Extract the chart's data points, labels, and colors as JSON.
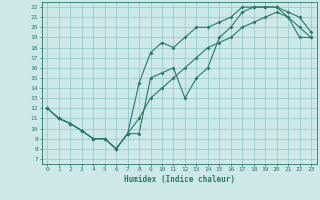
{
  "xlabel": "Humidex (Indice chaleur)",
  "bg_color": "#cce8e8",
  "grid_color": "#99cccc",
  "line_color": "#2a7a6a",
  "xlim": [
    -0.5,
    23.5
  ],
  "ylim": [
    6.5,
    22.5
  ],
  "xticks": [
    0,
    1,
    2,
    3,
    4,
    5,
    6,
    7,
    8,
    9,
    10,
    11,
    12,
    13,
    14,
    15,
    16,
    17,
    18,
    19,
    20,
    21,
    22,
    23
  ],
  "yticks": [
    7,
    8,
    9,
    10,
    11,
    12,
    13,
    14,
    15,
    16,
    17,
    18,
    19,
    20,
    21,
    22
  ],
  "line1_x": [
    0,
    1,
    2,
    3,
    4,
    5,
    6,
    7,
    8,
    9,
    10,
    11,
    12,
    13,
    14,
    15,
    16,
    17,
    18,
    19,
    20,
    21,
    22,
    23
  ],
  "line1_y": [
    12,
    11,
    10.5,
    9.8,
    9,
    9,
    8,
    9.5,
    14.5,
    17.5,
    18.5,
    18,
    19,
    20,
    20,
    20.5,
    21,
    22,
    22,
    22,
    22,
    21.5,
    21,
    19.5
  ],
  "line2_x": [
    0,
    1,
    2,
    3,
    4,
    5,
    6,
    7,
    8,
    9,
    10,
    11,
    12,
    13,
    14,
    15,
    16,
    17,
    18,
    19,
    20,
    21,
    22,
    23
  ],
  "line2_y": [
    12,
    11,
    10.5,
    9.8,
    9,
    9,
    8,
    9.5,
    9.5,
    15,
    15.5,
    16,
    13,
    15,
    16,
    19,
    20,
    21.5,
    22,
    22,
    22,
    21,
    19,
    19
  ],
  "line3_x": [
    0,
    1,
    2,
    3,
    4,
    5,
    6,
    7,
    8,
    9,
    10,
    11,
    12,
    13,
    14,
    15,
    16,
    17,
    18,
    19,
    20,
    21,
    22,
    23
  ],
  "line3_y": [
    12,
    11,
    10.5,
    9.8,
    9,
    9,
    8,
    9.5,
    11,
    13,
    14,
    15,
    16,
    17,
    18,
    18.5,
    19,
    20,
    20.5,
    21,
    21.5,
    21,
    20,
    19
  ]
}
